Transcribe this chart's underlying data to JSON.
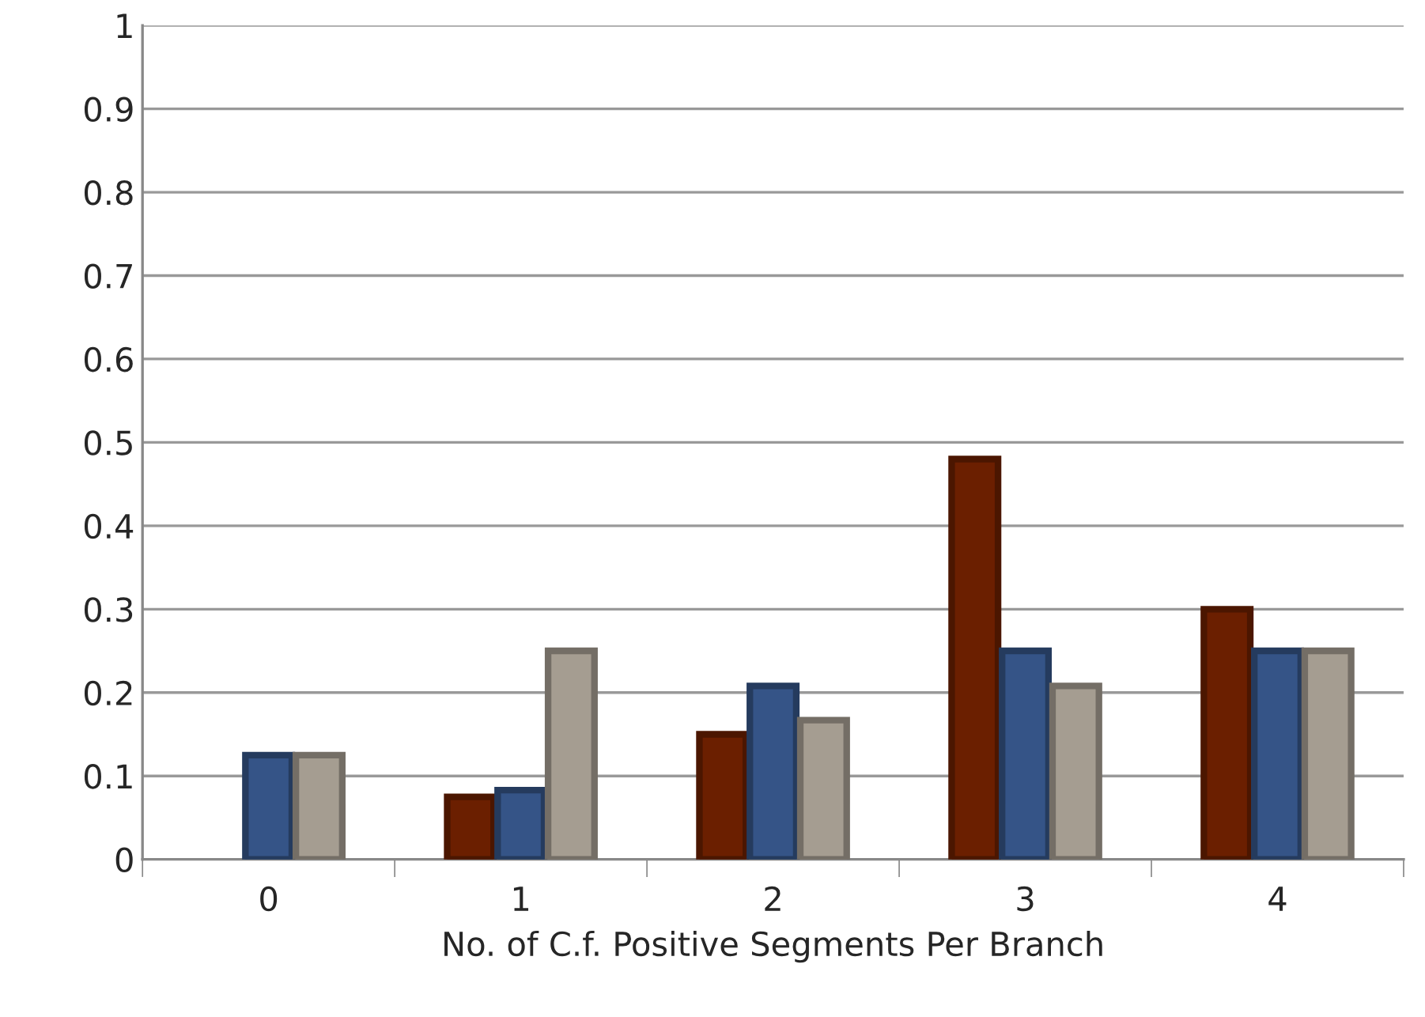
{
  "chart_data": {
    "type": "bar",
    "xlabel": "No. of C.f. Positive Segments Per Branch",
    "categories": [
      "0",
      "1",
      "2",
      "3",
      "4"
    ],
    "series": [
      {
        "color": "#6b1f00",
        "values": [
          null,
          0.075,
          0.15,
          0.48,
          0.3
        ]
      },
      {
        "color": "#355487",
        "values": [
          0.125,
          0.083,
          0.208,
          0.25,
          0.25
        ]
      },
      {
        "color": "#a59d91",
        "values": [
          0.125,
          0.25,
          0.167,
          0.208,
          0.25
        ]
      }
    ],
    "ylim": [
      0,
      1
    ],
    "yticks": [
      0,
      0.1,
      0.2,
      0.3,
      0.4,
      0.5,
      0.6,
      0.7,
      0.8,
      0.9,
      1
    ],
    "grid": "y",
    "legend": false
  }
}
